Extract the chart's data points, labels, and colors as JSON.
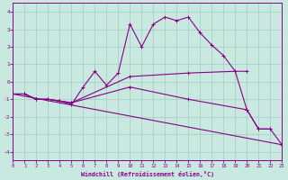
{
  "xlabel": "Windchill (Refroidissement éolien,°C)",
  "background_color": "#c8e8e0",
  "grid_color": "#a0ccc0",
  "line_color": "#880088",
  "xlim": [
    0,
    23
  ],
  "ylim": [
    -4.5,
    4.5
  ],
  "xticks": [
    0,
    1,
    2,
    3,
    4,
    5,
    6,
    7,
    8,
    9,
    10,
    11,
    12,
    13,
    14,
    15,
    16,
    17,
    18,
    19,
    20,
    21,
    22,
    23
  ],
  "yticks": [
    -4,
    -3,
    -2,
    -1,
    0,
    1,
    2,
    3,
    4
  ],
  "lines": [
    {
      "x": [
        0,
        1,
        2,
        3,
        4,
        5,
        6,
        7,
        8,
        9,
        10,
        11,
        12,
        13,
        14,
        15,
        16,
        17,
        18,
        19,
        20,
        21,
        22
      ],
      "y": [
        -0.7,
        -0.7,
        -1.0,
        -1.0,
        -1.1,
        -1.3,
        -0.3,
        0.6,
        -0.2,
        0.5,
        3.3,
        2.0,
        3.3,
        3.7,
        3.5,
        3.7,
        2.8,
        2.1,
        1.5,
        0.6,
        -1.6,
        -2.7,
        -2.7
      ]
    },
    {
      "x": [
        0,
        1,
        2,
        3,
        4,
        5,
        10,
        15,
        19,
        20
      ],
      "y": [
        -0.7,
        -0.7,
        -1.0,
        -1.0,
        -1.1,
        -1.2,
        0.3,
        0.5,
        0.6,
        0.6
      ]
    },
    {
      "x": [
        0,
        1,
        2,
        3,
        4,
        5,
        10,
        15,
        20,
        21,
        22,
        23
      ],
      "y": [
        -0.7,
        -0.7,
        -1.0,
        -1.0,
        -1.1,
        -1.2,
        -0.3,
        -1.0,
        -1.6,
        -2.7,
        -2.7,
        -3.6
      ]
    },
    {
      "x": [
        0,
        23
      ],
      "y": [
        -0.7,
        -3.6
      ]
    }
  ]
}
